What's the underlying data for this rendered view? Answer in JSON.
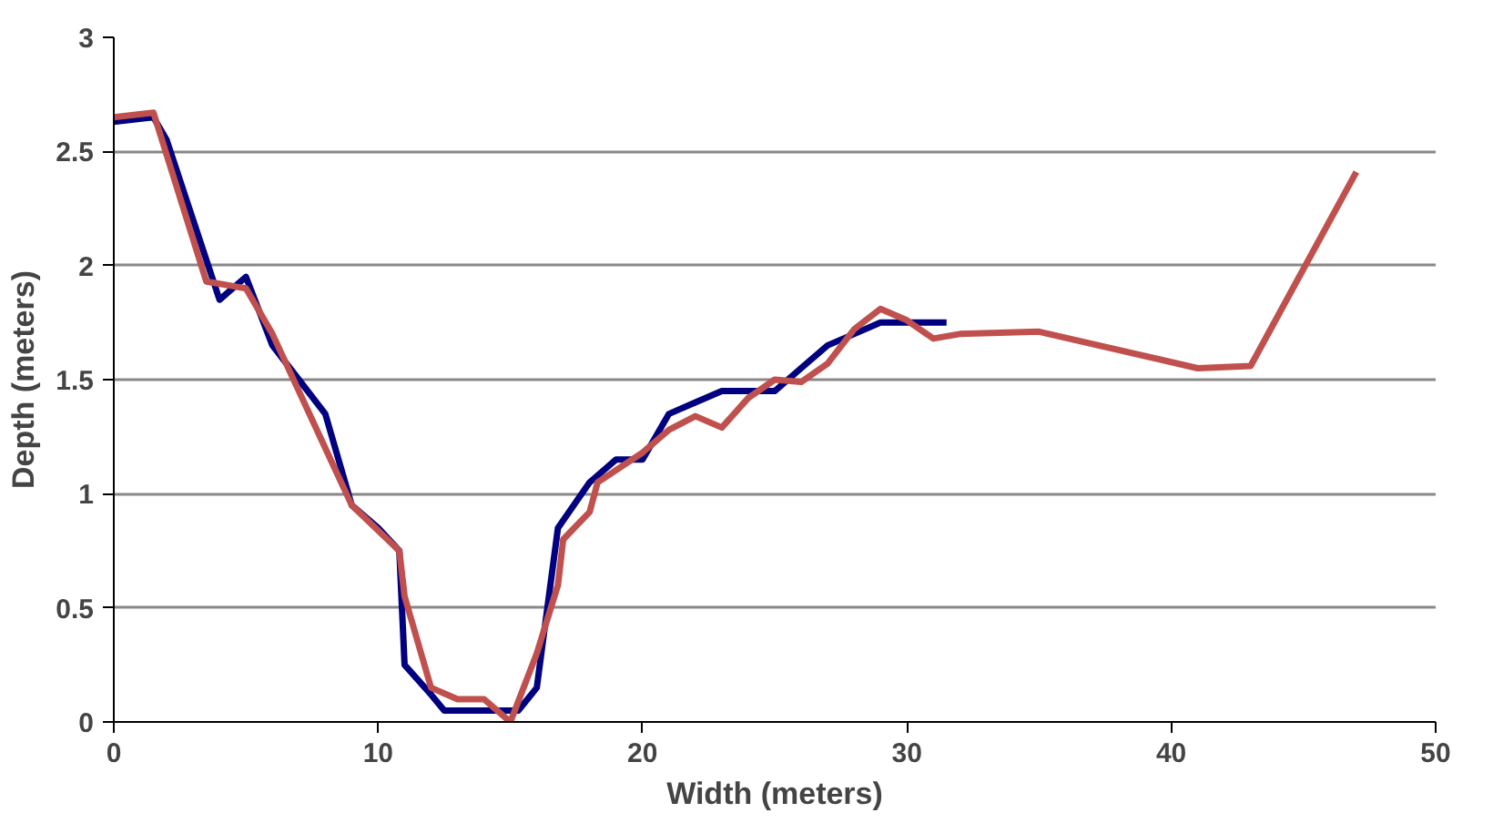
{
  "chart_data": {
    "type": "line",
    "xlabel": "Width (meters)",
    "ylabel": "Depth (meters)",
    "xlim": [
      0,
      50
    ],
    "xticks": [
      0,
      10,
      20,
      30,
      40,
      50
    ],
    "ylim": [
      0,
      3
    ],
    "yticks": [
      0,
      0.5,
      1,
      1.5,
      2,
      2.5,
      3
    ],
    "grid": "y",
    "marker": "none",
    "line_style": "solid",
    "series": [
      {
        "color": "#000080",
        "x": [
          0,
          1.5,
          2,
          3,
          4,
          5,
          6,
          7,
          8,
          9,
          10,
          10.8,
          11,
          12,
          12.5,
          14,
          15.3,
          16,
          16.8,
          18,
          19,
          20,
          21,
          22,
          23,
          24,
          25,
          26,
          27,
          28,
          29,
          30,
          31.5
        ],
        "values": [
          2.63,
          2.65,
          2.55,
          2.2,
          1.85,
          1.95,
          1.65,
          1.5,
          1.35,
          0.95,
          0.85,
          0.75,
          0.25,
          0.12,
          0.05,
          0.05,
          0.05,
          0.15,
          0.85,
          1.05,
          1.15,
          1.15,
          1.35,
          1.4,
          1.45,
          1.45,
          1.45,
          1.55,
          1.65,
          1.7,
          1.75,
          1.75,
          1.75
        ]
      },
      {
        "color": "#c0504d",
        "x": [
          0,
          1.5,
          3.5,
          5,
          6,
          9,
          10.8,
          11,
          12,
          13,
          14,
          15,
          16,
          16.8,
          17,
          18,
          18.3,
          20,
          21,
          22,
          23,
          24,
          25,
          26,
          27,
          28,
          29,
          30,
          31,
          32,
          35,
          41,
          43,
          47
        ],
        "values": [
          2.65,
          2.67,
          1.93,
          1.9,
          1.7,
          0.95,
          0.75,
          0.55,
          0.15,
          0.1,
          0.1,
          0,
          0.3,
          0.6,
          0.8,
          0.92,
          1.05,
          1.18,
          1.28,
          1.34,
          1.29,
          1.42,
          1.5,
          1.49,
          1.57,
          1.72,
          1.81,
          1.76,
          1.68,
          1.7,
          1.71,
          1.55,
          1.56,
          2.41
        ]
      }
    ]
  }
}
